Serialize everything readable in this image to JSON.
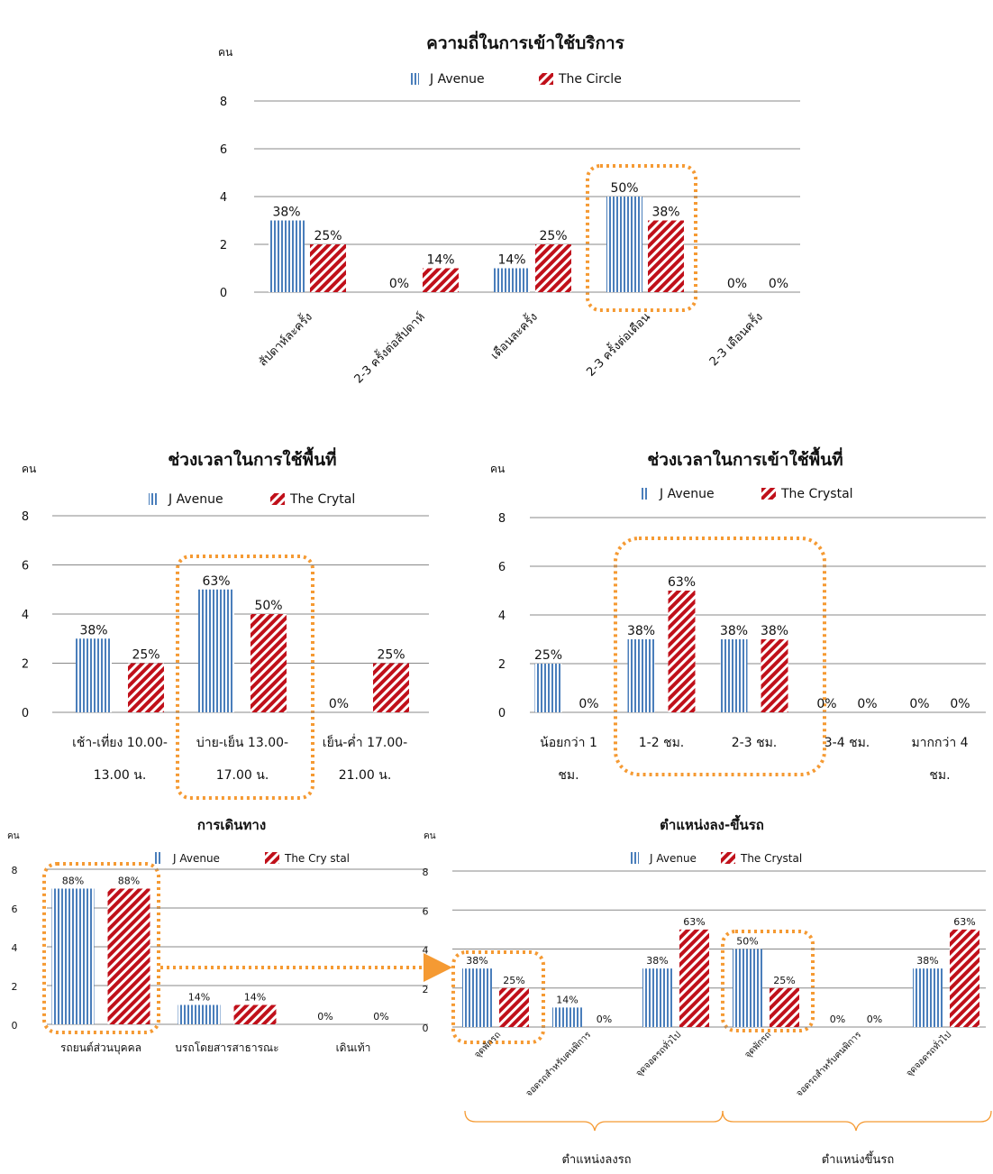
{
  "colors": {
    "javenue": "#4a7ebb",
    "crystal": "#c0101a",
    "highlight": "#f59a33",
    "grid": "#888888"
  },
  "chart_data": [
    {
      "type": "bar",
      "title": "ความถี่ในการเข้าใช้บริการ",
      "ylabel": "คน",
      "ylim": [
        0,
        8
      ],
      "yticks": [
        0,
        2,
        4,
        6,
        8
      ],
      "categories": [
        "สัปดาห์ละครั้ง",
        "2-3 ครั้งต่อสัปดาห์",
        "เดือนละครั้ง",
        "2-3 ครั้งต่อเดือน",
        "2-3 เดือนครั้ง"
      ],
      "series": [
        {
          "name": "J Avenue",
          "values": [
            3,
            0,
            1,
            4,
            0
          ],
          "labels": [
            "38%",
            "0%",
            "14%",
            "50%",
            "0%"
          ]
        },
        {
          "name": "The Circle",
          "values": [
            2,
            1,
            2,
            3,
            0
          ],
          "labels": [
            "25%",
            "14%",
            "25%",
            "38%",
            "0%"
          ]
        }
      ],
      "grid": true,
      "legend": "top"
    },
    {
      "type": "bar",
      "title": "ช่วงเวลาในการใช้พื้นที่",
      "ylabel": "คน",
      "ylim": [
        0,
        8
      ],
      "yticks": [
        0,
        2,
        4,
        6,
        8
      ],
      "categories": [
        [
          "เช้า-เที่ยง 10.00-",
          "13.00 น."
        ],
        [
          "บ่าย-เย็น 13.00-",
          "17.00 น."
        ],
        [
          "เย็น-ค่ำ 17.00-",
          "21.00 น."
        ]
      ],
      "series": [
        {
          "name": "J Avenue",
          "values": [
            3,
            5,
            0
          ],
          "labels": [
            "38%",
            "63%",
            "0%"
          ]
        },
        {
          "name": "The Crytal",
          "values": [
            2,
            4,
            2
          ],
          "labels": [
            "25%",
            "50%",
            "25%"
          ]
        }
      ],
      "grid": true,
      "legend": "top"
    },
    {
      "type": "bar",
      "title": "ช่วงเวลาในการเข้าใช้พื้นที่",
      "ylabel": "คน",
      "ylim": [
        0,
        8
      ],
      "yticks": [
        0,
        2,
        4,
        6,
        8
      ],
      "categories": [
        [
          "น้อยกว่า 1",
          "ชม."
        ],
        [
          "1-2 ชม."
        ],
        [
          "2-3 ชม."
        ],
        [
          "3-4 ชม."
        ],
        [
          "มากกว่า 4",
          "ชม."
        ]
      ],
      "series": [
        {
          "name": "J Avenue",
          "values": [
            2,
            3,
            3,
            0,
            0
          ],
          "labels": [
            "25%",
            "38%",
            "38%",
            "0%",
            "0%"
          ]
        },
        {
          "name": "The Crystal",
          "values": [
            0,
            5,
            3,
            0,
            0
          ],
          "labels": [
            "0%",
            "63%",
            "38%",
            "0%",
            "0%"
          ]
        }
      ],
      "grid": true,
      "legend": "top"
    },
    {
      "type": "bar",
      "title": "การเดินทาง",
      "ylabel": "คน",
      "ylim": [
        0,
        8
      ],
      "yticks": [
        0,
        2,
        4,
        6,
        8
      ],
      "categories": [
        "รถยนต์ส่วนบุคคล",
        "บรถโดยสารสาธารณะ",
        "เดินเท้า"
      ],
      "series": [
        {
          "name": "J Avenue",
          "values": [
            7,
            1,
            0
          ],
          "labels": [
            "88%",
            "14%",
            "0%"
          ]
        },
        {
          "name": "The Cry stal",
          "values": [
            7,
            1,
            0
          ],
          "labels": [
            "88%",
            "14%",
            "0%"
          ]
        }
      ],
      "grid": true,
      "legend": "top"
    },
    {
      "type": "bar",
      "title": "ตำแหน่งลง-ขึ้นรถ",
      "ylabel": "คน",
      "ylim": [
        0,
        8
      ],
      "yticks": [
        0,
        2,
        4,
        6,
        8
      ],
      "categories": [
        "จุดพักรถ",
        "จอดรถสำหรับคนพิการ",
        "จุดจอดรถทั่วไป",
        "จุดพักรถ",
        "จอดรถสำหรับคนพิการ",
        "จุดจอดรถทั่วไป"
      ],
      "groups": [
        "ตำแหน่งลงรถ",
        "ตำแหน่งขึ้นรถ"
      ],
      "series": [
        {
          "name": "J Avenue",
          "values": [
            3,
            1,
            3,
            4,
            0,
            3
          ],
          "labels": [
            "38%",
            "14%",
            "38%",
            "50%",
            "0%",
            "38%"
          ]
        },
        {
          "name": "The Crystal",
          "values": [
            2,
            0,
            5,
            2,
            0,
            5
          ],
          "labels": [
            "25%",
            "0%",
            "63%",
            "25%",
            "0%",
            "63%"
          ]
        }
      ],
      "grid": true,
      "legend": "top"
    }
  ]
}
